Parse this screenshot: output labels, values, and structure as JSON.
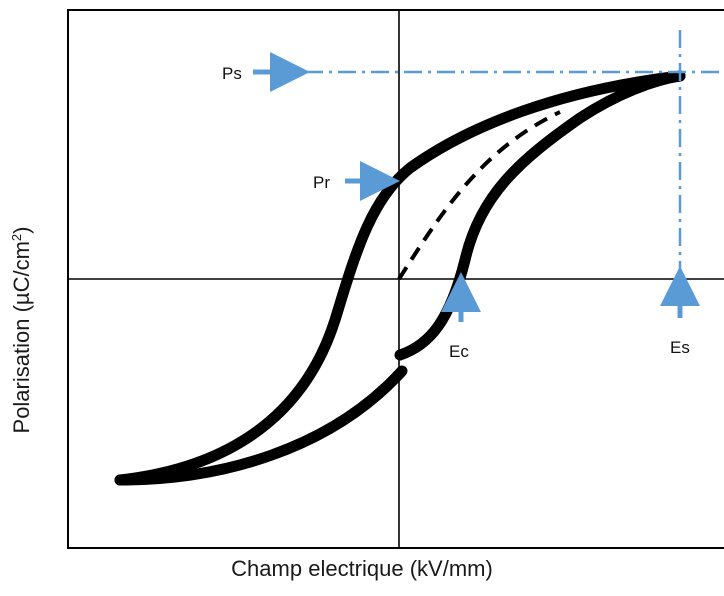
{
  "axes": {
    "x_label": "Champ electrique (kV/mm)",
    "y_label_main": "Polarisation (µC/cm",
    "y_label_sup": "2",
    "y_label_end": ")"
  },
  "annotations": {
    "ps": "Ps",
    "pr": "Pr",
    "ec": "Ec",
    "es": "Es"
  },
  "colors": {
    "curve": "#000000",
    "frame": "#000000",
    "arrow": "#5b9bd5",
    "guide": "#5b9bd5"
  }
}
